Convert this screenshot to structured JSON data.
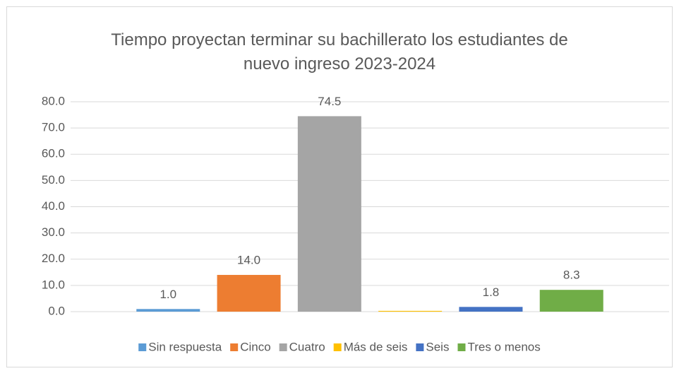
{
  "chart_data": {
    "type": "bar",
    "title": "Tiempo proyectan terminar su bachillerato los estudiantes de nuevo ingreso 2023-2024",
    "categories": [
      null
    ],
    "series": [
      {
        "name": "Sin respuesta",
        "color": "#5b9bd5",
        "values": [
          1.0
        ],
        "value_labels": [
          "1.0"
        ]
      },
      {
        "name": "Cinco",
        "color": "#ed7d31",
        "values": [
          14.0
        ],
        "value_labels": [
          "14.0"
        ]
      },
      {
        "name": "Cuatro",
        "color": "#a5a5a5",
        "values": [
          74.5
        ],
        "value_labels": [
          "74.5"
        ]
      },
      {
        "name": "Más de seis",
        "color": "#ffc000",
        "values": [
          0.3
        ]
      },
      {
        "name": "Seis",
        "color": "#4472c4",
        "values": [
          1.8
        ],
        "value_labels": [
          "1.8"
        ]
      },
      {
        "name": "Tres o menos",
        "color": "#70ad47",
        "values": [
          8.3
        ],
        "value_labels": [
          "8.3"
        ]
      }
    ],
    "ylim": [
      0,
      80
    ],
    "yticks": [
      {
        "value": 0,
        "label": "0.0"
      },
      {
        "value": 10,
        "label": "10.0"
      },
      {
        "value": 20,
        "label": "20.0"
      },
      {
        "value": 30,
        "label": "30.0"
      },
      {
        "value": 40,
        "label": "40.0"
      },
      {
        "value": 50,
        "label": "50.0"
      },
      {
        "value": 60,
        "label": "60.0"
      },
      {
        "value": 70,
        "label": "70.0"
      },
      {
        "value": 80,
        "label": "80.0"
      }
    ],
    "grid": true,
    "legend": "bottom"
  }
}
